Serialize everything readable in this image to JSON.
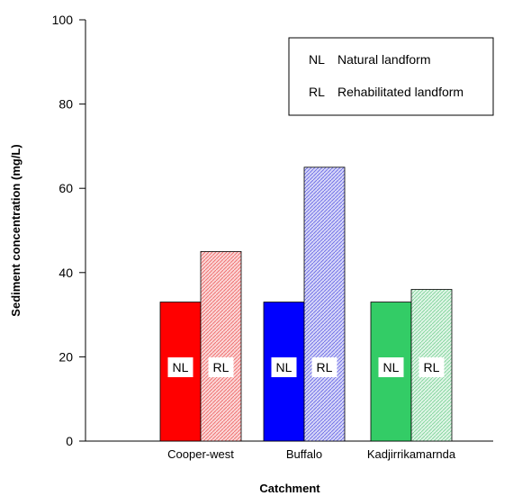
{
  "chart_data": {
    "type": "bar",
    "title": "",
    "xlabel": "Catchment",
    "ylabel": "Sediment concentration (mg/L)",
    "ylim": [
      0,
      100
    ],
    "yticks": [
      0,
      20,
      40,
      60,
      80,
      100
    ],
    "categories": [
      "Cooper-west",
      "Buffalo",
      "Kadjirrikamarnda"
    ],
    "series": [
      {
        "name": "NL",
        "tag": "NL",
        "values": [
          33,
          33,
          33
        ]
      },
      {
        "name": "RL",
        "tag": "RL",
        "values": [
          45,
          65,
          36
        ]
      }
    ],
    "bar_colors": {
      "natural": [
        "#ff0000",
        "#0000ff",
        "#33cc66"
      ],
      "rehabilitated": [
        "#f5a8a8",
        "#a8a8ee",
        "#b2e6c2"
      ]
    },
    "legend": {
      "position": "top-right",
      "entries": [
        {
          "code": "NL",
          "text": "Natural landform"
        },
        {
          "code": "RL",
          "text": "Rehabilitated landform"
        }
      ]
    },
    "grid": false
  }
}
